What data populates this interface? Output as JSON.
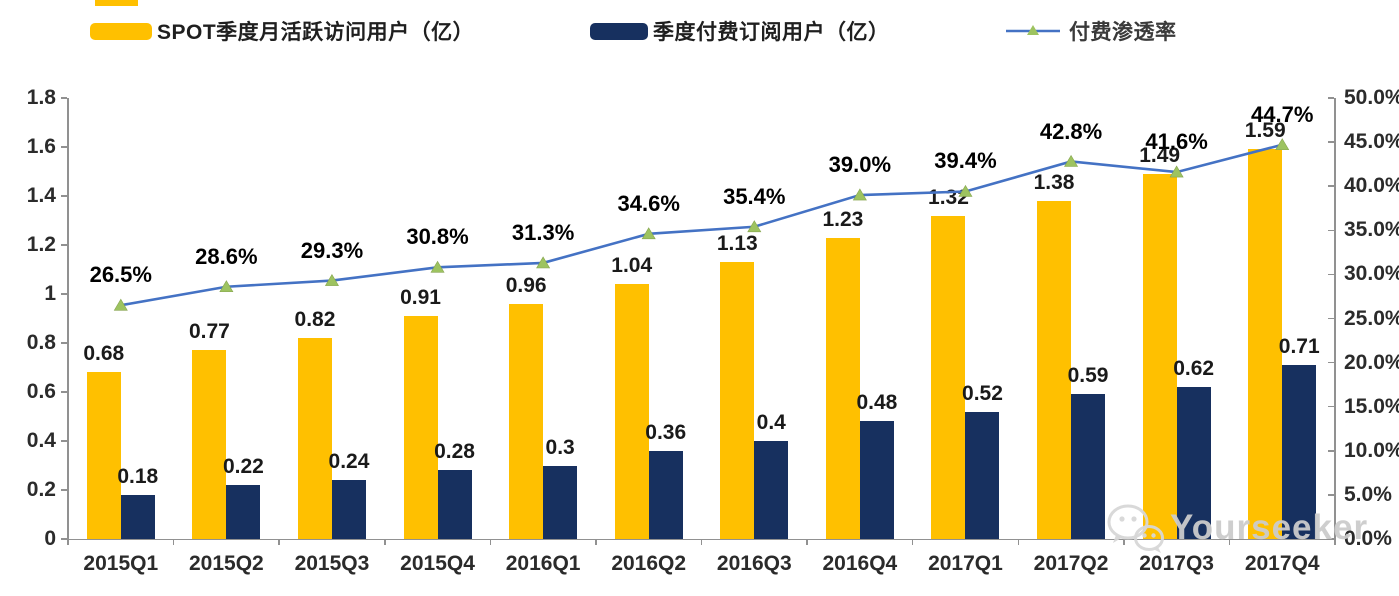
{
  "legend": {
    "items": [
      {
        "label": "SPOT季度月活跃访问用户（亿）",
        "color": "#FFC000",
        "type": "bar-swatch"
      },
      {
        "label": "季度付费订阅用户（亿）",
        "color": "#17305F",
        "type": "bar-swatch"
      },
      {
        "label": "付费渗透率",
        "line_color": "#4472C4",
        "marker_color": "#9DC360",
        "type": "line-marker"
      }
    ]
  },
  "watermark": {
    "text": "Yourseeker",
    "icon": "wechat-icon"
  },
  "chart_data": {
    "type": "bar",
    "subtype": "combo-bar-line-dual-axis",
    "categories": [
      "2015Q1",
      "2015Q2",
      "2015Q3",
      "2015Q4",
      "2016Q1",
      "2016Q2",
      "2016Q3",
      "2016Q4",
      "2017Q1",
      "2017Q2",
      "2017Q3",
      "2017Q4"
    ],
    "series": [
      {
        "name": "SPOT季度月活跃访问用户（亿）",
        "type": "bar",
        "axis": "left",
        "color": "#FFC000",
        "values": [
          0.68,
          0.77,
          0.82,
          0.91,
          0.96,
          1.04,
          1.13,
          1.23,
          1.32,
          1.38,
          1.49,
          1.59
        ],
        "labels": [
          "0.68",
          "0.77",
          "0.82",
          "0.91",
          "0.96",
          "1.04",
          "1.13",
          "1.23",
          "1.32",
          "1.38",
          "1.49",
          "1.59"
        ]
      },
      {
        "name": "季度付费订阅用户（亿）",
        "type": "bar",
        "axis": "left",
        "color": "#17305F",
        "values": [
          0.18,
          0.22,
          0.24,
          0.28,
          0.3,
          0.36,
          0.4,
          0.48,
          0.52,
          0.59,
          0.62,
          0.71
        ],
        "labels": [
          "0.18",
          "0.22",
          "0.24",
          "0.28",
          "0.3",
          "0.36",
          "0.4",
          "0.48",
          "0.52",
          "0.59",
          "0.62",
          "0.71"
        ]
      },
      {
        "name": "付费渗透率",
        "type": "line",
        "axis": "right",
        "color": "#4472C4",
        "marker": "triangle",
        "marker_color": "#9DC360",
        "values": [
          26.5,
          28.6,
          29.3,
          30.8,
          31.3,
          34.6,
          35.4,
          39.0,
          39.4,
          42.8,
          41.6,
          44.7
        ],
        "labels": [
          "26.5%",
          "28.6%",
          "29.3%",
          "30.8%",
          "31.3%",
          "34.6%",
          "35.4%",
          "39.0%",
          "39.4%",
          "42.8%",
          "41.6%",
          "44.7%"
        ]
      }
    ],
    "left_axis": {
      "min": 0,
      "max": 1.8,
      "step": 0.2,
      "ticks": [
        "0",
        "0.2",
        "0.4",
        "0.6",
        "0.8",
        "1",
        "1.2",
        "1.4",
        "1.6",
        "1.8"
      ]
    },
    "right_axis": {
      "min": 0,
      "max": 50,
      "step": 5,
      "ticks": [
        "0.0%",
        "5.0%",
        "10.0%",
        "15.0%",
        "20.0%",
        "25.0%",
        "30.0%",
        "35.0%",
        "40.0%",
        "45.0%",
        "50.0%"
      ]
    },
    "title": "",
    "grid": false,
    "legend_position": "top"
  }
}
